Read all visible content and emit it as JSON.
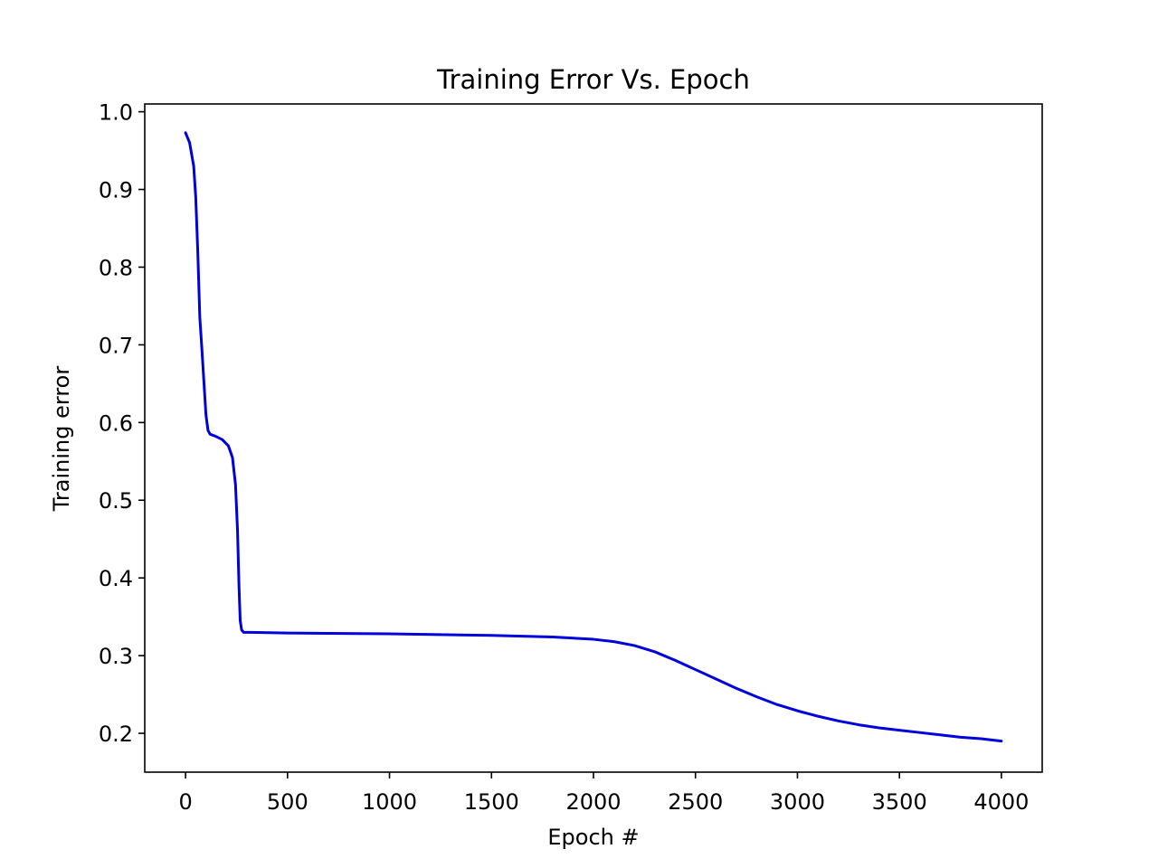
{
  "chart_data": {
    "type": "line",
    "title": "Training Error Vs. Epoch",
    "xlabel": "Epoch #",
    "ylabel": "Training error",
    "xlim": [
      -200,
      4200
    ],
    "ylim": [
      0.15,
      1.01
    ],
    "xticks": [
      0,
      500,
      1000,
      1500,
      2000,
      2500,
      3000,
      3500,
      4000
    ],
    "xtick_labels": [
      "0",
      "500",
      "1000",
      "1500",
      "2000",
      "2500",
      "3000",
      "3500",
      "4000"
    ],
    "yticks": [
      0.2,
      0.3,
      0.4,
      0.5,
      0.6,
      0.7,
      0.8,
      0.9,
      1.0
    ],
    "ytick_labels": [
      "0.2",
      "0.3",
      "0.4",
      "0.5",
      "0.6",
      "0.7",
      "0.8",
      "0.9",
      "1.0"
    ],
    "grid": false,
    "series": [
      {
        "color": "#0000dd",
        "x": [
          0,
          20,
          40,
          50,
          60,
          70,
          80,
          100,
          110,
          120,
          150,
          180,
          210,
          230,
          245,
          255,
          262,
          268,
          275,
          285,
          300,
          320,
          500,
          1000,
          1500,
          1800,
          2000,
          2100,
          2200,
          2300,
          2400,
          2500,
          2600,
          2700,
          2800,
          2900,
          3000,
          3100,
          3200,
          3300,
          3400,
          3500,
          3600,
          3700,
          3800,
          3900,
          4000
        ],
        "y": [
          0.973,
          0.96,
          0.93,
          0.89,
          0.82,
          0.735,
          0.695,
          0.61,
          0.59,
          0.585,
          0.582,
          0.578,
          0.57,
          0.555,
          0.52,
          0.46,
          0.39,
          0.345,
          0.333,
          0.33,
          0.33,
          0.33,
          0.329,
          0.328,
          0.326,
          0.324,
          0.321,
          0.318,
          0.313,
          0.305,
          0.294,
          0.282,
          0.27,
          0.258,
          0.247,
          0.237,
          0.229,
          0.222,
          0.216,
          0.211,
          0.207,
          0.204,
          0.201,
          0.198,
          0.195,
          0.193,
          0.19
        ]
      }
    ]
  }
}
